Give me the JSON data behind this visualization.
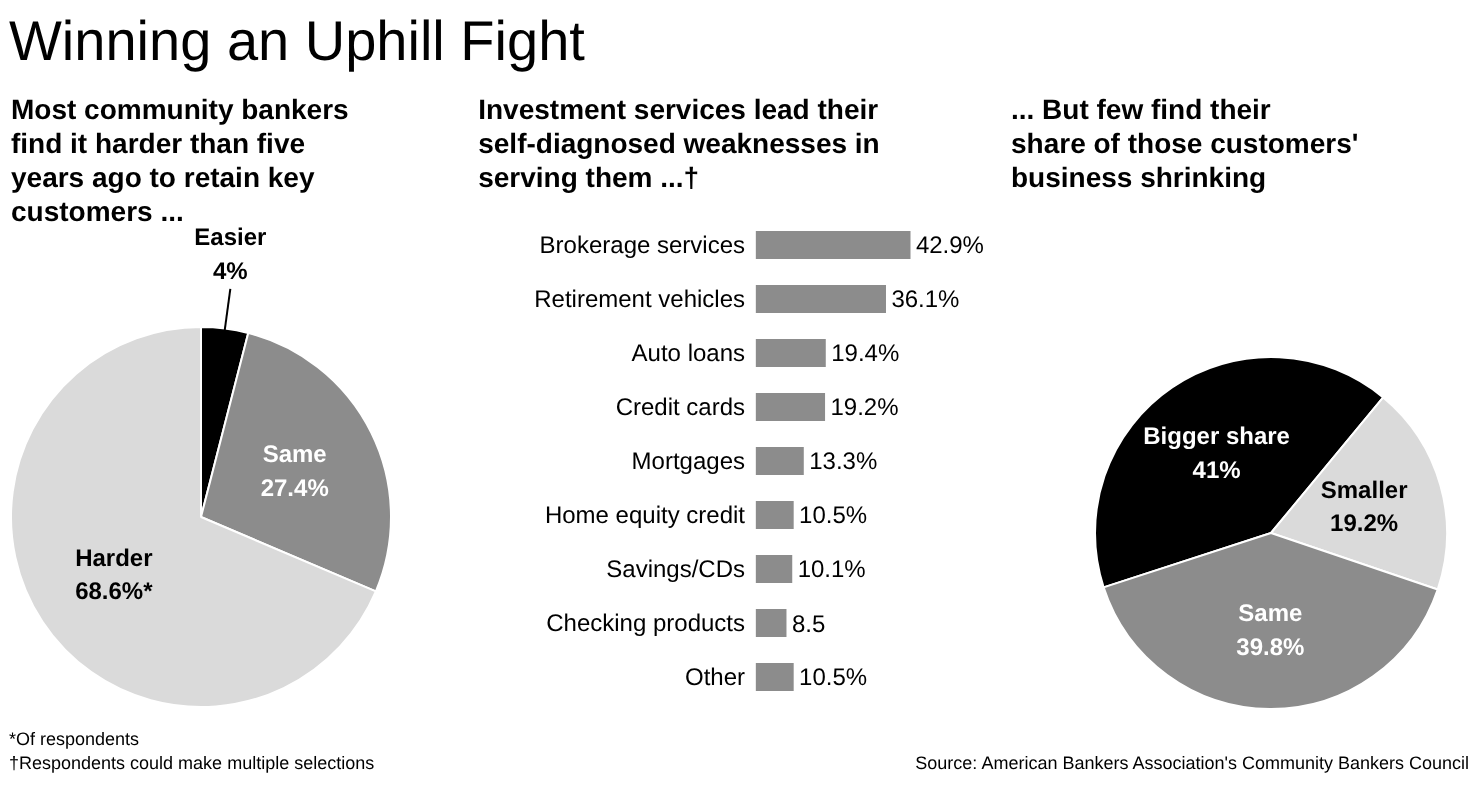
{
  "chart_data": [
    {
      "type": "pie",
      "title": "Winning an Uphill Fight",
      "subtitle": "Most community bankers find it harder than five years ago to retain key customers ...",
      "categories": [
        "Easier",
        "Same",
        "Harder"
      ],
      "values": [
        4,
        27.4,
        68.6
      ],
      "colors": [
        "#000000",
        "#8c8c8c",
        "#dadada"
      ],
      "value_labels": [
        "4%",
        "27.4%",
        "68.6%*"
      ],
      "annotations": [
        "*Of respondents"
      ]
    },
    {
      "type": "bar",
      "orientation": "horizontal",
      "subtitle": "Investment services lead their self-diagnosed weaknesses in serving them ...†",
      "categories": [
        "Brokerage services",
        "Retirement vehicles",
        "Auto loans",
        "Credit cards",
        "Mortgages",
        "Home equity credit",
        "Savings/CDs",
        "Checking products",
        "Other"
      ],
      "values": [
        42.9,
        36.1,
        19.4,
        19.2,
        13.3,
        10.5,
        10.1,
        8.5,
        10.5
      ],
      "color": "#8c8c8c",
      "value_labels": [
        "42.9%",
        "36.1%",
        "19.4%",
        "19.2%",
        "13.3%",
        "10.5%",
        "10.1%",
        "8.5",
        "10.5%"
      ],
      "annotations": [
        "†Respondents could make multiple selections"
      ]
    },
    {
      "type": "pie",
      "subtitle": "... But few find their share of those customers' business shrinking",
      "categories": [
        "Bigger share",
        "Smaller",
        "Same"
      ],
      "values": [
        41,
        19.2,
        39.8
      ],
      "colors": [
        "#000000",
        "#dadada",
        "#8c8c8c"
      ],
      "value_labels": [
        "41%",
        "19.2%",
        "39.8%"
      ],
      "annotations": [
        "Source: American Bankers Association's Community Bankers Council"
      ]
    }
  ]
}
